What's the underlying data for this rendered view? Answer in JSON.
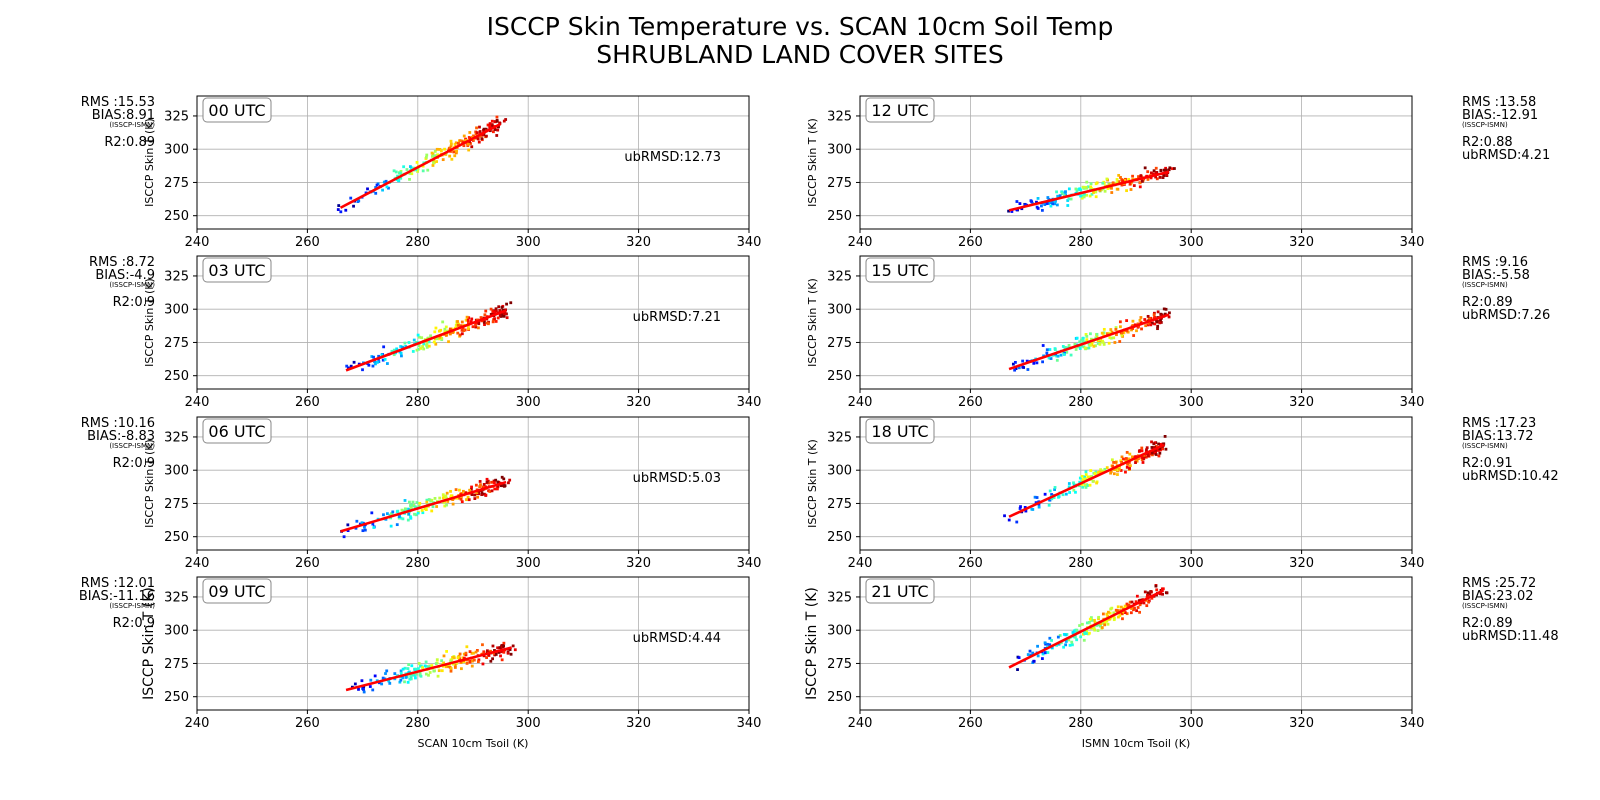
{
  "figure": {
    "title_line1": "ISCCP Skin Temperature vs. SCAN 10cm Soil Temp",
    "title_line2": "SHRUBLAND LAND COVER SITES",
    "xlabel_left": "SCAN 10cm Tsoil (K)",
    "xlabel_right": "ISMN 10cm Tsoil (K)"
  },
  "chart_data": [
    {
      "type": "scatter",
      "panel": "00 UTC",
      "x_range": [
        240,
        340
      ],
      "y_range": [
        240,
        340
      ],
      "xticks": [
        240,
        260,
        280,
        300,
        320,
        340
      ],
      "yticks": [
        250,
        275,
        300,
        325
      ],
      "grid": true,
      "ylabel": "ISCCP Skin T (K)",
      "fit_line": {
        "x": [
          266,
          295
        ],
        "y": [
          256,
          319
        ],
        "color": "#ff0000"
      },
      "stats": {
        "rms": "RMS :15.53",
        "bias": "BIAS:8.91",
        "bias_note": "(ISSCP-ISMN)",
        "r2": "R2:0.89",
        "ubrmsd": "ubRMSD:12.73"
      }
    },
    {
      "type": "scatter",
      "panel": "03 UTC",
      "x_range": [
        240,
        340
      ],
      "y_range": [
        240,
        340
      ],
      "xticks": [
        240,
        260,
        280,
        300,
        320,
        340
      ],
      "yticks": [
        250,
        275,
        300,
        325
      ],
      "grid": true,
      "ylabel": "ISCCP Skin T (K)",
      "fit_line": {
        "x": [
          267,
          296
        ],
        "y": [
          254,
          299
        ],
        "color": "#ff0000"
      },
      "stats": {
        "rms": "RMS :8.72",
        "bias": "BIAS:-4.9",
        "bias_note": "(ISSCP-ISMN)",
        "r2": "R2:0.9",
        "ubrmsd": "ubRMSD:7.21"
      }
    },
    {
      "type": "scatter",
      "panel": "06 UTC",
      "x_range": [
        240,
        340
      ],
      "y_range": [
        240,
        340
      ],
      "xticks": [
        240,
        260,
        280,
        300,
        320,
        340
      ],
      "yticks": [
        250,
        275,
        300,
        325
      ],
      "grid": true,
      "ylabel": "ISCCP Skin T (K)",
      "fit_line": {
        "x": [
          266,
          296
        ],
        "y": [
          254,
          291
        ],
        "color": "#ff0000"
      },
      "stats": {
        "rms": "RMS :10.16",
        "bias": "BIAS:-8.83",
        "bias_note": "(ISSCP-ISMN)",
        "r2": "R2:0.9",
        "ubrmsd": "ubRMSD:5.03"
      }
    },
    {
      "type": "scatter",
      "panel": "09 UTC",
      "x_range": [
        240,
        340
      ],
      "y_range": [
        240,
        340
      ],
      "xticks": [
        240,
        260,
        280,
        300,
        320,
        340
      ],
      "yticks": [
        250,
        275,
        300,
        325
      ],
      "grid": true,
      "ylabel": "ISCCP Skin T (K)",
      "xlabel": "SCAN 10cm Tsoil (K)",
      "fit_line": {
        "x": [
          267,
          297
        ],
        "y": [
          255,
          287
        ],
        "color": "#ff0000"
      },
      "stats": {
        "rms": "RMS :12.01",
        "bias": "BIAS:-11.16",
        "bias_note": "(ISSCP-ISMN)",
        "r2": "R2:0.9",
        "ubrmsd": "ubRMSD:4.44"
      }
    },
    {
      "type": "scatter",
      "panel": "12 UTC",
      "x_range": [
        240,
        340
      ],
      "y_range": [
        240,
        340
      ],
      "xticks": [
        240,
        260,
        280,
        300,
        320,
        340
      ],
      "yticks": [
        250,
        275,
        300,
        325
      ],
      "grid": true,
      "ylabel": "ISCCP Skin T (K)",
      "fit_line": {
        "x": [
          267,
          296
        ],
        "y": [
          254,
          283
        ],
        "color": "#ff0000"
      },
      "stats": {
        "rms": "RMS :13.58",
        "bias": "BIAS:-12.91",
        "bias_note": "(ISSCP-ISMN)",
        "r2": "R2:0.88",
        "ubrmsd": "ubRMSD:4.21"
      }
    },
    {
      "type": "scatter",
      "panel": "15 UTC",
      "x_range": [
        240,
        340
      ],
      "y_range": [
        240,
        340
      ],
      "xticks": [
        240,
        260,
        280,
        300,
        320,
        340
      ],
      "yticks": [
        250,
        275,
        300,
        325
      ],
      "grid": true,
      "ylabel": "ISCCP Skin T (K)",
      "fit_line": {
        "x": [
          267,
          296
        ],
        "y": [
          255,
          296
        ],
        "color": "#ff0000"
      },
      "stats": {
        "rms": "RMS :9.16",
        "bias": "BIAS:-5.58",
        "bias_note": "(ISSCP-ISMN)",
        "r2": "R2:0.89",
        "ubrmsd": "ubRMSD:7.26"
      }
    },
    {
      "type": "scatter",
      "panel": "18 UTC",
      "x_range": [
        240,
        340
      ],
      "y_range": [
        240,
        340
      ],
      "xticks": [
        240,
        260,
        280,
        300,
        320,
        340
      ],
      "yticks": [
        250,
        275,
        300,
        325
      ],
      "grid": true,
      "ylabel": "ISCCP Skin T (K)",
      "fit_line": {
        "x": [
          267,
          295
        ],
        "y": [
          265,
          319
        ],
        "color": "#ff0000"
      },
      "stats": {
        "rms": "RMS :17.23",
        "bias": "BIAS:13.72",
        "bias_note": "(ISSCP-ISMN)",
        "r2": "R2:0.91",
        "ubrmsd": "ubRMSD:10.42"
      }
    },
    {
      "type": "scatter",
      "panel": "21 UTC",
      "x_range": [
        240,
        340
      ],
      "y_range": [
        240,
        340
      ],
      "xticks": [
        240,
        260,
        280,
        300,
        320,
        340
      ],
      "yticks": [
        250,
        275,
        300,
        325
      ],
      "grid": true,
      "ylabel": "ISCCP Skin T (K)",
      "xlabel": "ISMN 10cm Tsoil (K)",
      "fit_line": {
        "x": [
          267,
          295
        ],
        "y": [
          272,
          330
        ],
        "color": "#ff0000"
      },
      "stats": {
        "rms": "RMS :25.72",
        "bias": "BIAS:23.02",
        "bias_note": "(ISSCP-ISMN)",
        "r2": "R2:0.89",
        "ubrmsd": "ubRMSD:11.48"
      }
    }
  ]
}
